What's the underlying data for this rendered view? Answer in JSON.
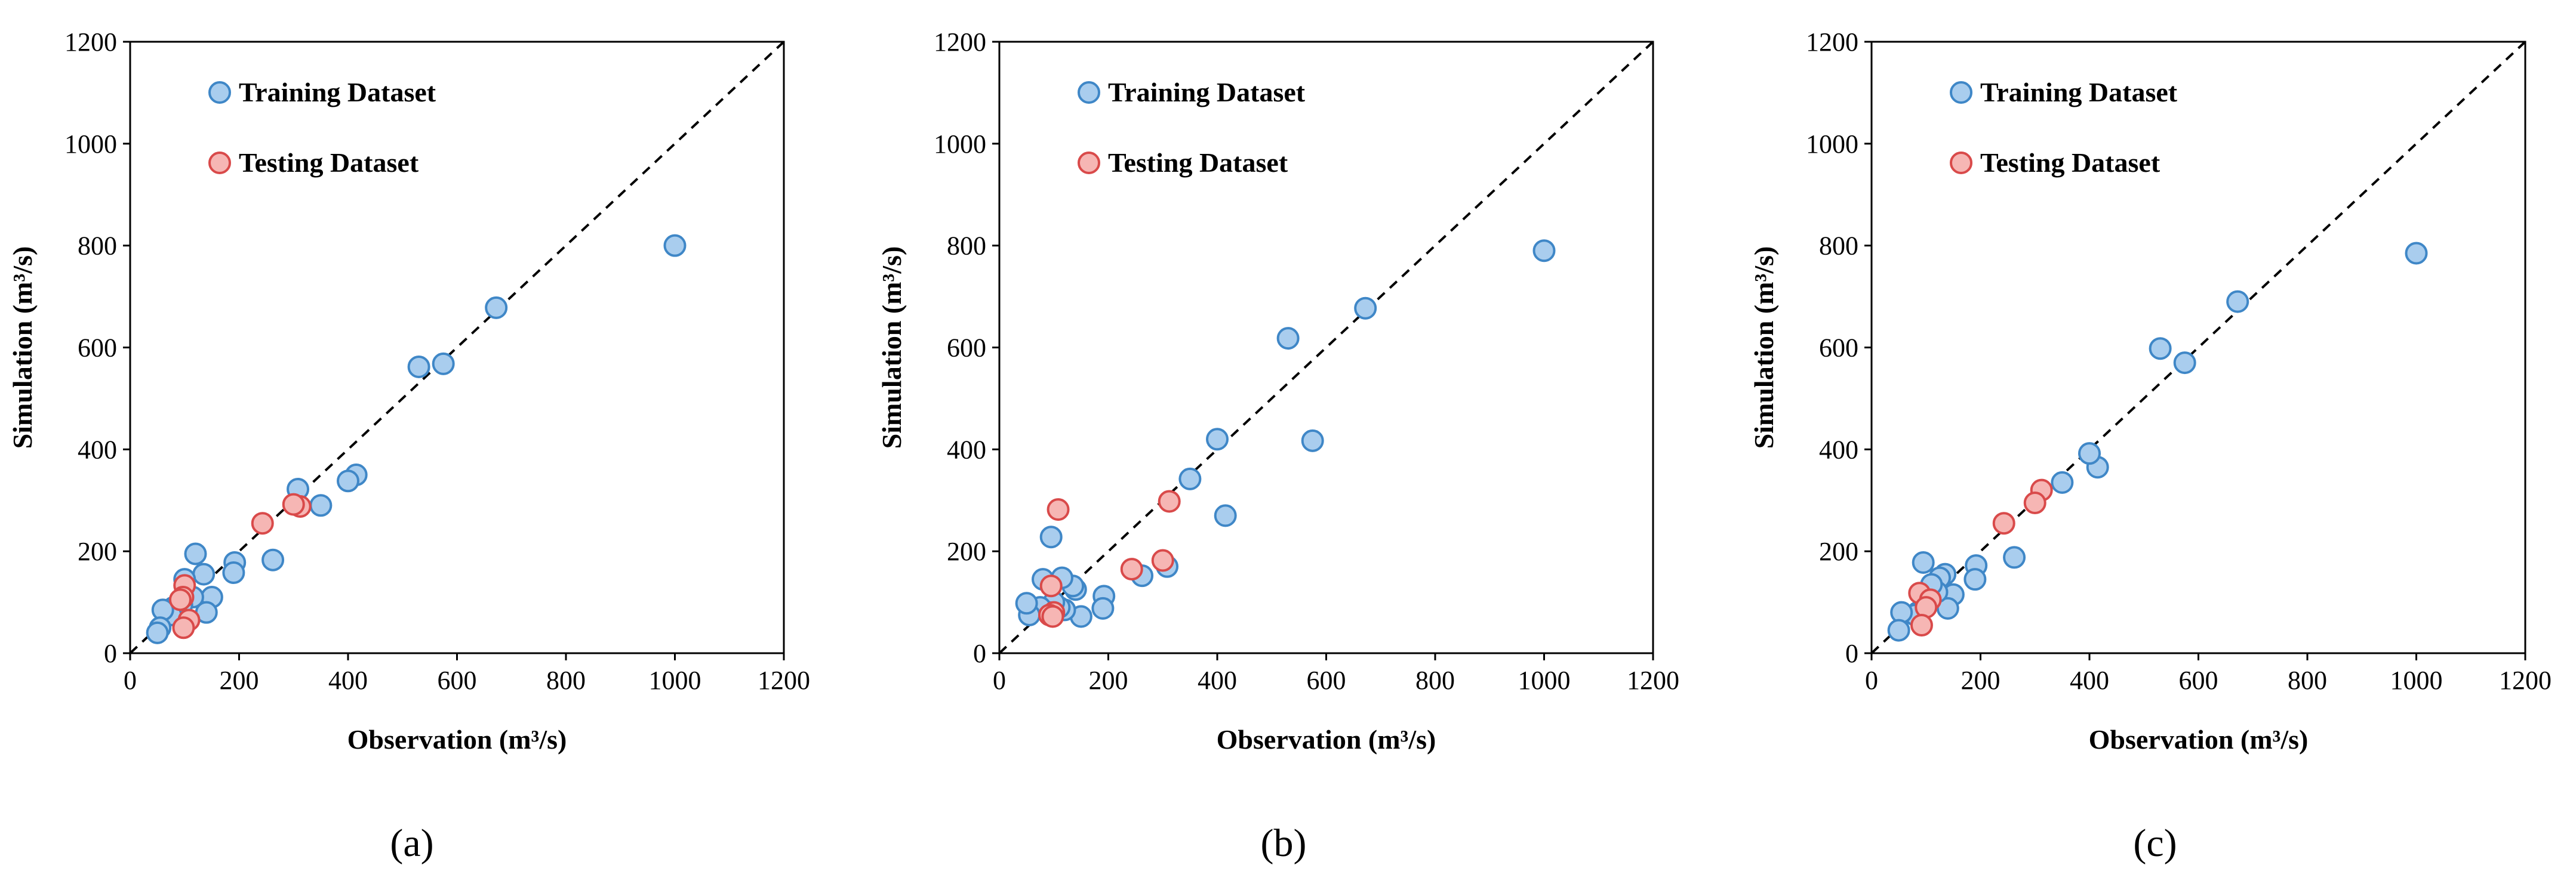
{
  "panel_labels": [
    "(a)",
    "(b)",
    "(c)"
  ],
  "colors": {
    "training_fill": "#a9cdee",
    "training_edge": "#3f87c7",
    "testing_fill": "#f6b6b4",
    "testing_edge": "#d94a4a",
    "reference_line": "#000000"
  },
  "chart_data": [
    {
      "type": "scatter",
      "panel": "(a)",
      "xlabel": "Observation (m³/s)",
      "ylabel": "Simulation (m³/s)",
      "xlim": [
        0,
        1200
      ],
      "ylim": [
        0,
        1200
      ],
      "xticks": [
        0,
        200,
        400,
        600,
        800,
        1000,
        1200
      ],
      "yticks": [
        0,
        200,
        400,
        600,
        800,
        1000,
        1200
      ],
      "reference_line": "1:1 dashed",
      "legend_position": "top-left",
      "series": [
        {
          "name": "Training Dataset",
          "x": [
            1000,
            672,
            575,
            530,
            415,
            400,
            350,
            308,
            262,
            192,
            190,
            150,
            140,
            135,
            120,
            115,
            100,
            95,
            90,
            80,
            75,
            60,
            55,
            50
          ],
          "y": [
            800,
            678,
            568,
            562,
            350,
            338,
            290,
            322,
            183,
            178,
            158,
            110,
            80,
            155,
            195,
            110,
            145,
            95,
            70,
            90,
            75,
            85,
            50,
            40
          ]
        },
        {
          "name": "Testing Dataset",
          "x": [
            243,
            312,
            300,
            100,
            97,
            108,
            92,
            98
          ],
          "y": [
            255,
            288,
            292,
            133,
            110,
            65,
            105,
            50
          ]
        }
      ]
    },
    {
      "type": "scatter",
      "panel": "(b)",
      "xlabel": "Observation (m³/s)",
      "ylabel": "Simulation (m³/s)",
      "xlim": [
        0,
        1200
      ],
      "ylim": [
        0,
        1200
      ],
      "xticks": [
        0,
        200,
        400,
        600,
        800,
        1000,
        1200
      ],
      "yticks": [
        0,
        200,
        400,
        600,
        800,
        1000,
        1200
      ],
      "reference_line": "1:1 dashed",
      "legend_position": "top-left",
      "series": [
        {
          "name": "Training Dataset",
          "x": [
            1000,
            672,
            575,
            530,
            415,
            400,
            350,
            308,
            262,
            192,
            190,
            150,
            140,
            135,
            120,
            115,
            110,
            100,
            95,
            90,
            80,
            75,
            55,
            50
          ],
          "y": [
            790,
            677,
            417,
            618,
            270,
            420,
            342,
            170,
            152,
            112,
            88,
            72,
            125,
            132,
            85,
            148,
            90,
            100,
            228,
            80,
            145,
            90,
            75,
            98
          ]
        },
        {
          "name": "Testing Dataset",
          "x": [
            243,
            312,
            300,
            108,
            95,
            100,
            92,
            98
          ],
          "y": [
            165,
            298,
            182,
            282,
            132,
            80,
            75,
            72
          ]
        }
      ]
    },
    {
      "type": "scatter",
      "panel": "(c)",
      "xlabel": "Observation (m³/s)",
      "ylabel": "Simulation (m³/s)",
      "xlim": [
        0,
        1200
      ],
      "ylim": [
        0,
        1200
      ],
      "xticks": [
        0,
        200,
        400,
        600,
        800,
        1000,
        1200
      ],
      "yticks": [
        0,
        200,
        400,
        600,
        800,
        1000,
        1200
      ],
      "reference_line": "1:1 dashed",
      "legend_position": "top-left",
      "series": [
        {
          "name": "Training Dataset",
          "x": [
            1000,
            672,
            575,
            530,
            415,
            400,
            350,
            262,
            192,
            190,
            150,
            140,
            135,
            125,
            120,
            110,
            100,
            95,
            85,
            80,
            55,
            50
          ],
          "y": [
            785,
            690,
            570,
            598,
            365,
            392,
            335,
            188,
            172,
            145,
            115,
            88,
            155,
            148,
            120,
            135,
            92,
            178,
            80,
            75,
            80,
            45
          ]
        },
        {
          "name": "Testing Dataset",
          "x": [
            243,
            312,
            300,
            88,
            108,
            100,
            92
          ],
          "y": [
            255,
            320,
            295,
            118,
            105,
            90,
            55
          ]
        }
      ]
    }
  ]
}
